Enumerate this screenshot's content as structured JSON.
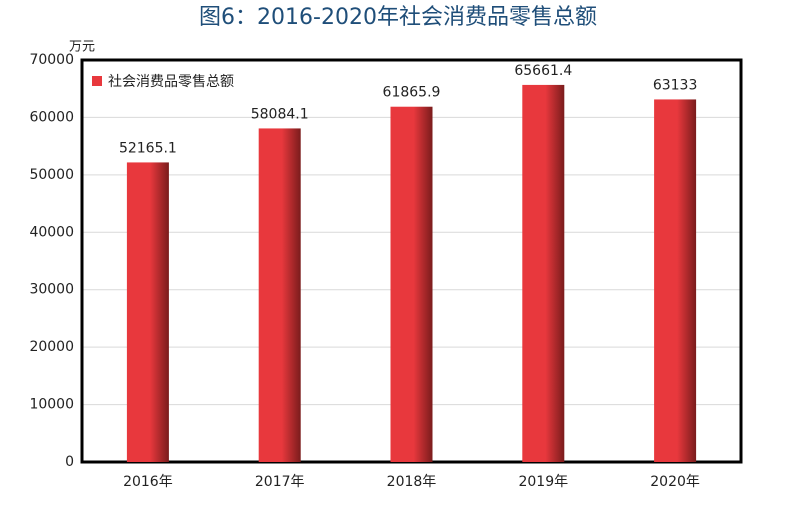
{
  "chart_data": {
    "type": "bar",
    "title": "图6：2016-2020年社会消费品零售总额",
    "y_label": "万元",
    "categories": [
      "2016年",
      "2017年",
      "2018年",
      "2019年",
      "2020年"
    ],
    "series": [
      {
        "name": "社会消费品零售总额",
        "color": "#e8383d",
        "values": [
          52165.1,
          58084.1,
          61865.9,
          65661.4,
          63133
        ]
      }
    ],
    "ylim": [
      0,
      70000
    ],
    "yticks": [
      0,
      10000,
      20000,
      30000,
      40000,
      50000,
      60000,
      70000
    ],
    "grid": true,
    "legend": "top-left"
  }
}
